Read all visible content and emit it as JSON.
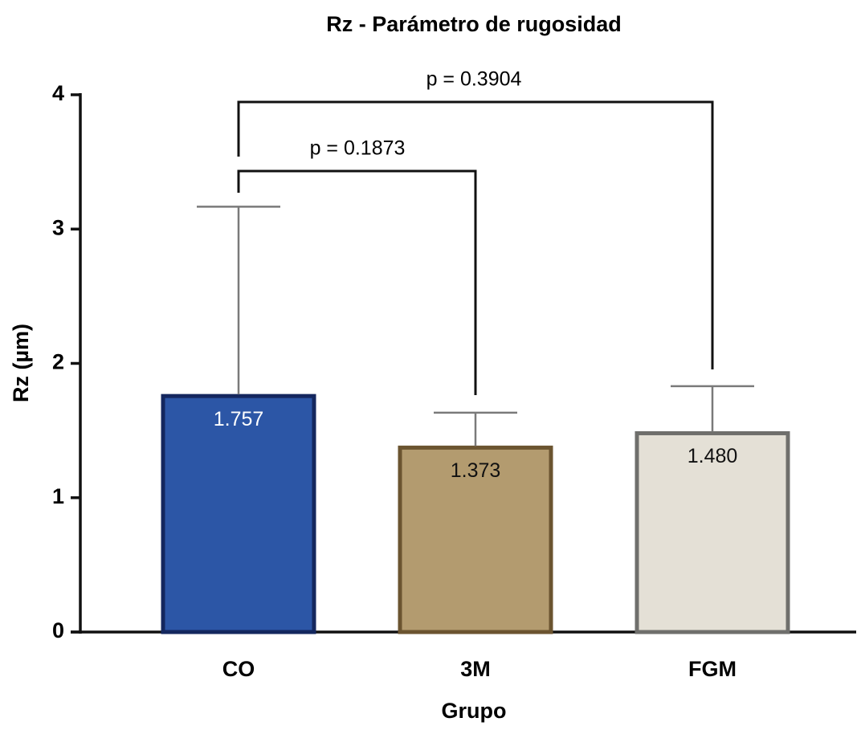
{
  "chart_data": {
    "type": "bar",
    "title": "Rz - Parámetro de rugosidad",
    "x_label": "Grupo",
    "y_label": "Rz (µm)",
    "categories": [
      "CO",
      "3M",
      "FGM"
    ],
    "values": [
      1.757,
      1.373,
      1.48
    ],
    "value_labels": [
      "1.757",
      "1.373",
      "1.480"
    ],
    "errors": [
      1.41,
      0.26,
      0.35
    ],
    "colors": [
      "#2c56a6",
      "#b39b6f",
      "#e4e0d6"
    ],
    "edge_colors": [
      "#14275e",
      "#6b5430",
      "#6f6f6c"
    ],
    "label_colors": [
      "#ffffff",
      "#111111",
      "#111111"
    ],
    "error_color": "#7a7a7a",
    "ylim": [
      0,
      4
    ],
    "yticks": [
      0,
      1,
      2,
      3,
      4
    ],
    "annotations": [
      "p = 0.1873",
      "p = 0.3904"
    ]
  }
}
